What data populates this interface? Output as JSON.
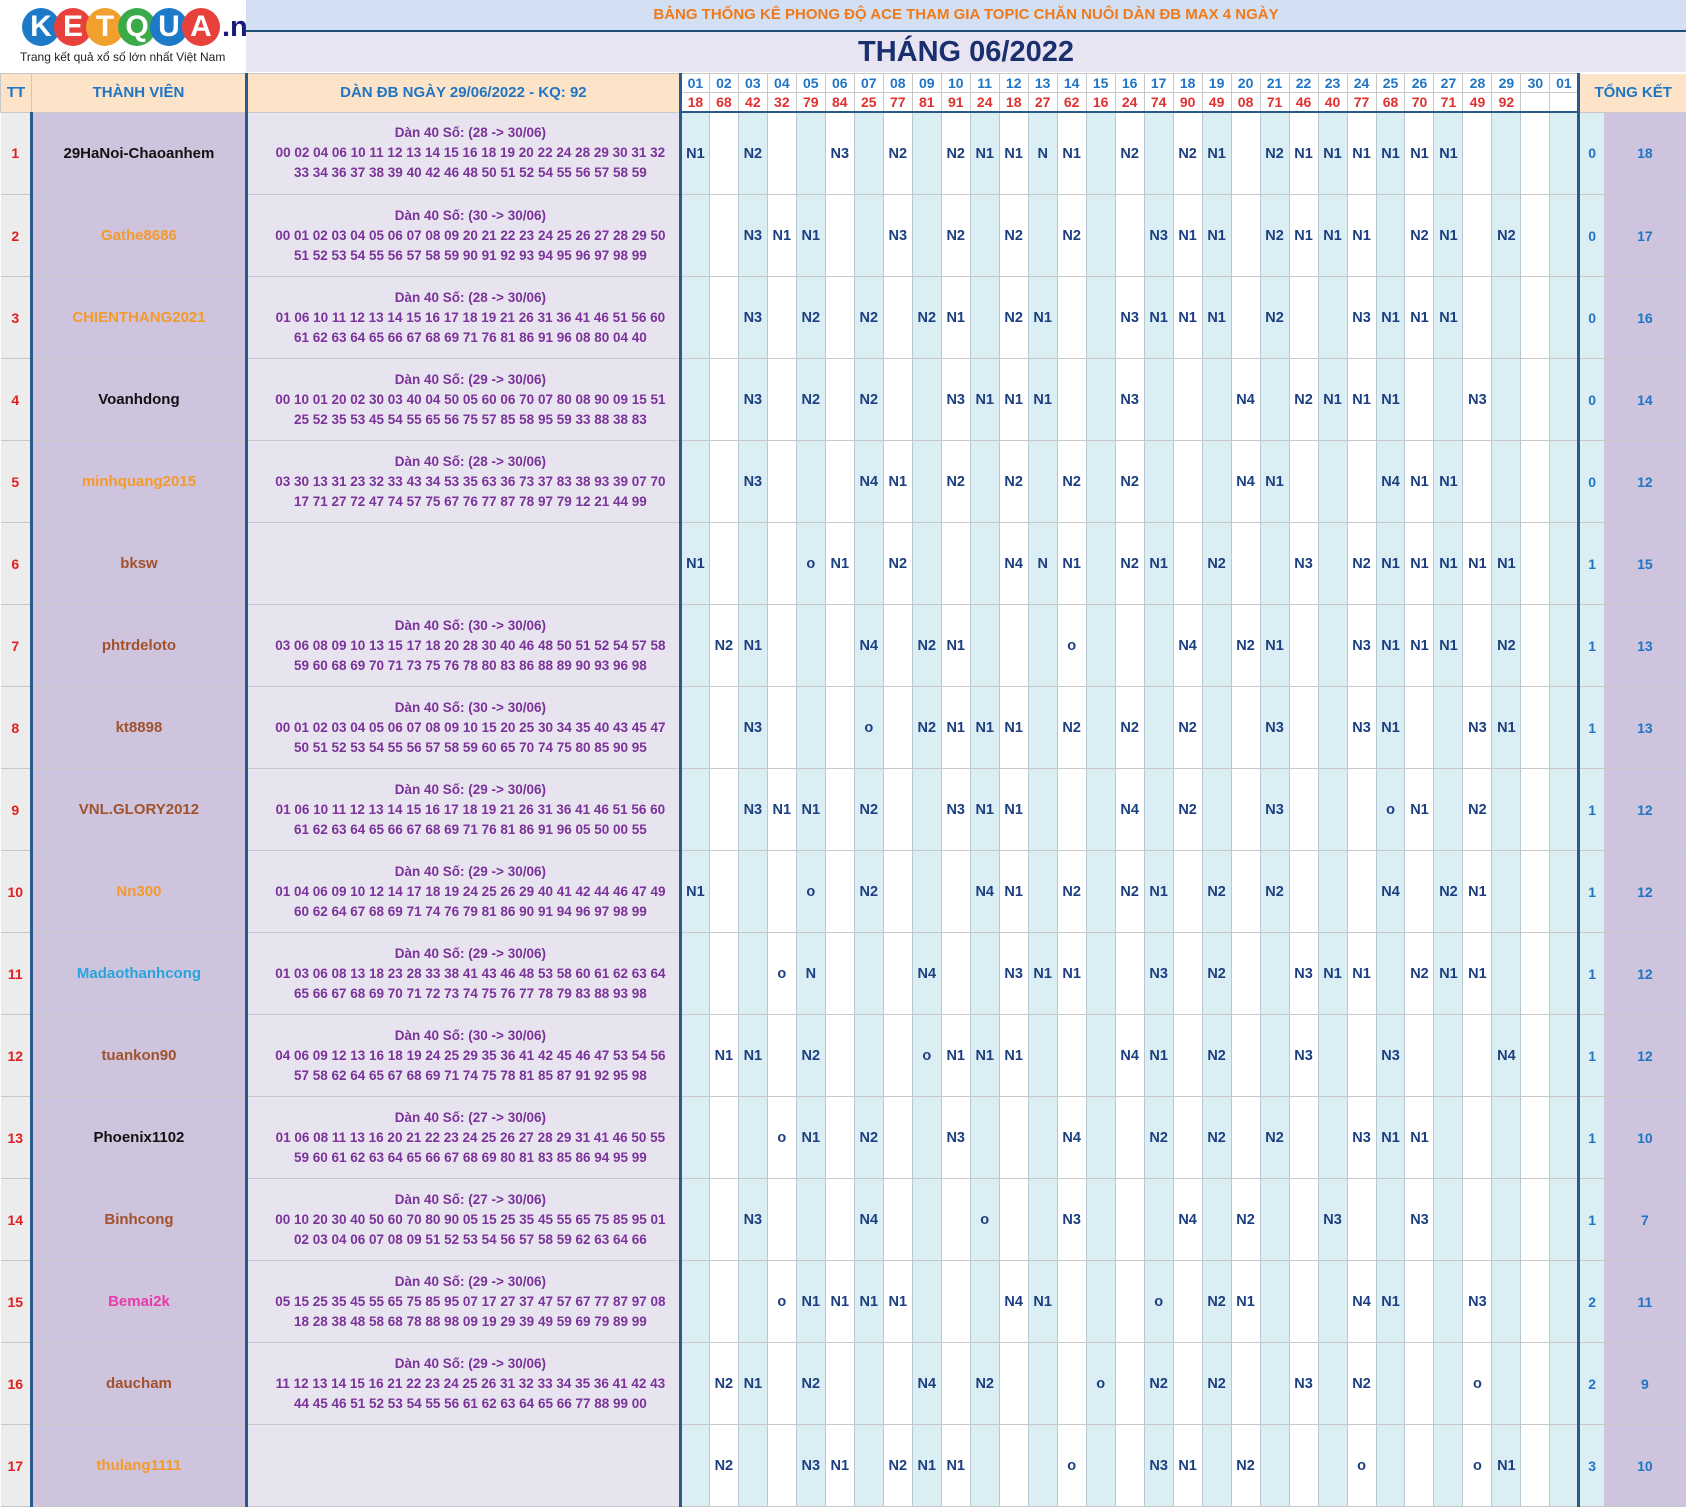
{
  "logo": {
    "letters": [
      "K",
      "E",
      "T",
      "Q",
      "U",
      "A"
    ],
    "colors": [
      "#1d7ac8",
      "#e8413c",
      "#f1a02e",
      "#3bab49",
      "#1d7ac8",
      "#e8413c"
    ],
    "domain": ".net",
    "tagline": "Trang kết quả xổ số lớn nhất Việt Nam"
  },
  "banner": "BẢNG THỐNG KÊ PHONG ĐỘ ACE THAM GIA TOPIC CHĂN NUÔI DÀN ĐB MAX 4 NGÀY",
  "month_title": "THÁNG 06/2022",
  "headers": {
    "tt": "TT",
    "member": "THÀNH VIÊN",
    "dan": "DÀN ĐB NGÀY 29/06/2022 - KQ: 92",
    "total": "TỔNG KẾT"
  },
  "days": [
    "01",
    "02",
    "03",
    "04",
    "05",
    "06",
    "07",
    "08",
    "09",
    "10",
    "11",
    "12",
    "13",
    "14",
    "15",
    "16",
    "17",
    "18",
    "19",
    "20",
    "21",
    "22",
    "23",
    "24",
    "25",
    "26",
    "27",
    "28",
    "29",
    "30",
    "01"
  ],
  "results": [
    "18",
    "68",
    "42",
    "32",
    "79",
    "84",
    "25",
    "77",
    "81",
    "91",
    "24",
    "18",
    "27",
    "62",
    "16",
    "24",
    "74",
    "90",
    "49",
    "08",
    "71",
    "46",
    "40",
    "77",
    "68",
    "70",
    "71",
    "49",
    "92",
    "",
    ""
  ],
  "rows": [
    {
      "tt": "1",
      "name": "29HaNoi-Chaoanhem",
      "color": "#111111",
      "dan1": "Dàn 40 Số: (28 -> 30/06)",
      "dan2": "00 02 04 06 10 11 12 13 14 15 16 18 19 20 22 24 28 29 30 31 32",
      "dan3": "33 34 36 37 38 39 40 42 46 48 50 51 52 54 55 56 57 58 59",
      "cells": [
        "N1",
        "",
        "N2",
        "",
        "",
        "N3",
        "",
        "N2",
        "",
        "N2",
        "N1",
        "N1",
        "N",
        "N1",
        "",
        "N2",
        "",
        "N2",
        "N1",
        "",
        "N2",
        "N1",
        "N1",
        "N1",
        "N1",
        "N1",
        "N1",
        "",
        "",
        "",
        ""
      ],
      "t1": "0",
      "t2": "18"
    },
    {
      "tt": "2",
      "name": "Gathe8686",
      "color": "#f39a2b",
      "dan1": "Dàn 40 Số: (30 -> 30/06)",
      "dan2": "00 01 02 03 04 05 06 07 08 09 20 21 22 23 24 25 26 27 28 29 50",
      "dan3": "51 52 53 54 55 56 57 58 59 90 91 92 93 94 95 96 97 98 99",
      "cells": [
        "",
        "",
        "N3",
        "N1",
        "N1",
        "",
        "",
        "N3",
        "",
        "N2",
        "",
        "N2",
        "",
        "N2",
        "",
        "",
        "N3",
        "N1",
        "N1",
        "",
        "N2",
        "N1",
        "N1",
        "N1",
        "",
        "N2",
        "N1",
        "",
        "N2",
        "",
        ""
      ],
      "t1": "0",
      "t2": "17"
    },
    {
      "tt": "3",
      "name": "CHIENTHANG2021",
      "color": "#f39a2b",
      "dan1": "Dàn 40 Số: (28 -> 30/06)",
      "dan2": "01 06 10 11 12 13 14 15 16 17 18 19 21 26 31 36 41 46 51 56 60",
      "dan3": "61 62 63 64 65 66 67 68 69 71 76 81 86 91 96 08 80 04 40",
      "cells": [
        "",
        "",
        "N3",
        "",
        "N2",
        "",
        "N2",
        "",
        "N2",
        "N1",
        "",
        "N2",
        "N1",
        "",
        "",
        "N3",
        "N1",
        "N1",
        "N1",
        "",
        "N2",
        "",
        "",
        "N3",
        "N1",
        "N1",
        "N1",
        "",
        "",
        "",
        ""
      ],
      "t1": "0",
      "t2": "16"
    },
    {
      "tt": "4",
      "name": "Voanhdong",
      "color": "#111111",
      "dan1": "Dàn 40 Số: (29 -> 30/06)",
      "dan2": "00 10 01 20 02 30 03 40 04 50 05 60 06 70 07 80 08 90 09 15 51",
      "dan3": "25 52 35 53 45 54 55 65 56 75 57 85 58 95 59 33 88 38 83",
      "cells": [
        "",
        "",
        "N3",
        "",
        "N2",
        "",
        "N2",
        "",
        "",
        "N3",
        "N1",
        "N1",
        "N1",
        "",
        "",
        "N3",
        "",
        "",
        "",
        "N4",
        "",
        "N2",
        "N1",
        "N1",
        "N1",
        "",
        "",
        "N3",
        "",
        "",
        ""
      ],
      "t1": "0",
      "t2": "14"
    },
    {
      "tt": "5",
      "name": "minhquang2015",
      "color": "#f39a2b",
      "dan1": "Dàn 40 Số: (28 -> 30/06)",
      "dan2": "03 30 13 31 23 32 33 43 34 53 35 63 36 73 37 83 38 93 39 07 70",
      "dan3": "17 71 27 72 47 74 57 75 67 76 77 87 78 97 79 12 21 44 99",
      "cells": [
        "",
        "",
        "N3",
        "",
        "",
        "",
        "N4",
        "N1",
        "",
        "N2",
        "",
        "N2",
        "",
        "N2",
        "",
        "N2",
        "",
        "",
        "",
        "N4",
        "N1",
        "",
        "",
        "",
        "N4",
        "N1",
        "N1",
        "",
        "",
        "",
        ""
      ],
      "t1": "0",
      "t2": "12"
    },
    {
      "tt": "6",
      "name": "bksw",
      "color": "#a0522d",
      "dan1": "",
      "dan2": "",
      "dan3": "",
      "cells": [
        "N1",
        "",
        "",
        "",
        "o",
        "N1",
        "",
        "N2",
        "",
        "",
        "",
        "N4",
        "N",
        "N1",
        "",
        "N2",
        "N1",
        "",
        "N2",
        "",
        "",
        "N3",
        "",
        "N2",
        "N1",
        "N1",
        "N1",
        "N1",
        "N1",
        "",
        ""
      ],
      "t1": "1",
      "t2": "15"
    },
    {
      "tt": "7",
      "name": "phtrdeloto",
      "color": "#a0522d",
      "dan1": "Dàn 40 Số: (30 -> 30/06)",
      "dan2": "03 06 08 09 10 13 15 17 18 20 28 30 40 46 48 50 51 52 54 57 58",
      "dan3": "59 60 68 69 70 71 73 75 76 78 80 83 86 88 89 90 93 96 98",
      "cells": [
        "",
        "N2",
        "N1",
        "",
        "",
        "",
        "N4",
        "",
        "N2",
        "N1",
        "",
        "",
        "",
        "o",
        "",
        "",
        "",
        "N4",
        "",
        "N2",
        "N1",
        "",
        "",
        "N3",
        "N1",
        "N1",
        "N1",
        "",
        "N2",
        "",
        ""
      ],
      "t1": "1",
      "t2": "13"
    },
    {
      "tt": "8",
      "name": "kt8898",
      "color": "#a0522d",
      "dan1": "Dàn 40 Số: (30 -> 30/06)",
      "dan2": "00 01 02 03 04 05 06 07 08 09 10 15 20 25 30 34 35 40 43 45 47",
      "dan3": "50 51 52 53 54 55 56 57 58 59 60 65 70 74 75 80 85 90 95",
      "cells": [
        "",
        "",
        "N3",
        "",
        "",
        "",
        "o",
        "",
        "N2",
        "N1",
        "N1",
        "N1",
        "",
        "N2",
        "",
        "N2",
        "",
        "N2",
        "",
        "",
        "N3",
        "",
        "",
        "N3",
        "N1",
        "",
        "",
        "N3",
        "N1",
        "",
        ""
      ],
      "t1": "1",
      "t2": "13"
    },
    {
      "tt": "9",
      "name": "VNL.GLORY2012",
      "color": "#a0522d",
      "dan1": "Dàn 40 Số: (29 -> 30/06)",
      "dan2": "01 06 10 11 12 13 14 15 16 17 18 19 21 26 31 36 41 46 51 56 60",
      "dan3": "61 62 63 64 65 66 67 68 69 71 76 81 86 91 96 05 50 00 55",
      "cells": [
        "",
        "",
        "N3",
        "N1",
        "N1",
        "",
        "N2",
        "",
        "",
        "N3",
        "N1",
        "N1",
        "",
        "",
        "",
        "N4",
        "",
        "N2",
        "",
        "",
        "N3",
        "",
        "",
        "",
        "o",
        "N1",
        "",
        "N2",
        "",
        "",
        ""
      ],
      "t1": "1",
      "t2": "12"
    },
    {
      "tt": "10",
      "name": "Nn300",
      "color": "#f39a2b",
      "dan1": "Dàn 40 Số: (29 -> 30/06)",
      "dan2": "01 04 06 09 10 12 14 17 18 19 24 25 26 29 40 41 42 44 46 47 49",
      "dan3": "60 62 64 67 68 69 71 74 76 79 81 86 90 91 94 96 97 98 99",
      "cells": [
        "N1",
        "",
        "",
        "",
        "o",
        "",
        "N2",
        "",
        "",
        "",
        "N4",
        "N1",
        "",
        "N2",
        "",
        "N2",
        "N1",
        "",
        "N2",
        "",
        "N2",
        "",
        "",
        "",
        "N4",
        "",
        "N2",
        "N1",
        "",
        "",
        ""
      ],
      "t1": "1",
      "t2": "12"
    },
    {
      "tt": "11",
      "name": "Madaothanhcong",
      "color": "#29a3dc",
      "dan1": "Dàn 40 Số: (29 -> 30/06)",
      "dan2": "01 03 06 08 13 18 23 28 33 38 41 43 46 48 53 58 60 61 62 63 64",
      "dan3": "65 66 67 68 69 70 71 72 73 74 75 76 77 78 79 83 88 93 98",
      "cells": [
        "",
        "",
        "",
        "o",
        "N",
        "",
        "",
        "",
        "N4",
        "",
        "",
        "N3",
        "N1",
        "N1",
        "",
        "",
        "N3",
        "",
        "N2",
        "",
        "",
        "N3",
        "N1",
        "N1",
        "",
        "N2",
        "N1",
        "N1",
        "",
        "",
        ""
      ],
      "t1": "1",
      "t2": "12"
    },
    {
      "tt": "12",
      "name": "tuankon90",
      "color": "#a0522d",
      "dan1": "Dàn 40 Số: (30 -> 30/06)",
      "dan2": "04 06 09 12 13 16 18 19 24 25 29 35 36 41 42 45 46 47 53 54 56",
      "dan3": "57 58 62 64 65 67 68 69 71 74 75 78 81 85 87 91 92 95 98",
      "cells": [
        "",
        "N1",
        "N1",
        "",
        "N2",
        "",
        "",
        "",
        "o",
        "N1",
        "N1",
        "N1",
        "",
        "",
        "",
        "N4",
        "N1",
        "",
        "N2",
        "",
        "",
        "N3",
        "",
        "",
        "N3",
        "",
        "",
        "",
        "N4",
        "",
        ""
      ],
      "t1": "1",
      "t2": "12"
    },
    {
      "tt": "13",
      "name": "Phoenix1102",
      "color": "#111111",
      "dan1": "Dàn 40 Số: (27 -> 30/06)",
      "dan2": "01 06 08 11 13 16 20 21 22 23 24 25 26 27 28 29 31 41 46 50 55",
      "dan3": "59 60 61 62 63 64 65 66 67 68 69 80 81 83 85 86 94 95 99",
      "cells": [
        "",
        "",
        "",
        "o",
        "N1",
        "",
        "N2",
        "",
        "",
        "N3",
        "",
        "",
        "",
        "N4",
        "",
        "",
        "N2",
        "",
        "N2",
        "",
        "N2",
        "",
        "",
        "N3",
        "N1",
        "N1",
        "",
        "",
        "",
        "",
        ""
      ],
      "t1": "1",
      "t2": "10"
    },
    {
      "tt": "14",
      "name": "Binhcong",
      "color": "#a0522d",
      "dan1": "Dàn 40 Số: (27 -> 30/06)",
      "dan2": "00 10 20 30 40 50 60 70 80 90 05 15 25 35 45 55 65 75 85 95 01",
      "dan3": "02 03 04 06 07 08 09 51 52 53 54 56 57 58 59 62 63 64 66",
      "cells": [
        "",
        "",
        "N3",
        "",
        "",
        "",
        "N4",
        "",
        "",
        "",
        "o",
        "",
        "",
        "N3",
        "",
        "",
        "",
        "N4",
        "",
        "N2",
        "",
        "",
        "N3",
        "",
        "",
        "N3",
        "",
        "",
        "",
        "",
        ""
      ],
      "t1": "1",
      "t2": "7"
    },
    {
      "tt": "15",
      "name": "Bemai2k",
      "color": "#e83aaa",
      "dan1": "Dàn 40 Số: (29 -> 30/06)",
      "dan2": "05 15 25 35 45 55 65 75 85 95 07 17 27 37 47 57 67 77 87 97 08",
      "dan3": "18 28 38 48 58 68 78 88 98 09 19 29 39 49 59 69 79 89 99",
      "cells": [
        "",
        "",
        "",
        "o",
        "N1",
        "N1",
        "N1",
        "N1",
        "",
        "",
        "",
        "N4",
        "N1",
        "",
        "",
        "",
        "o",
        "",
        "N2",
        "N1",
        "",
        "",
        "",
        "N4",
        "N1",
        "",
        "",
        "N3",
        "",
        "",
        ""
      ],
      "t1": "2",
      "t2": "11"
    },
    {
      "tt": "16",
      "name": "daucham",
      "color": "#a0522d",
      "dan1": "Dàn 40 Số: (29 -> 30/06)",
      "dan2": "11 12 13 14 15 16 21 22 23 24 25 26 31 32 33 34 35 36 41 42 43",
      "dan3": "44 45 46 51 52 53 54 55 56 61 62 63 64 65 66 77 88 99 00",
      "cells": [
        "",
        "N2",
        "N1",
        "",
        "N2",
        "",
        "",
        "",
        "N4",
        "",
        "N2",
        "",
        "",
        "",
        "o",
        "",
        "N2",
        "",
        "N2",
        "",
        "",
        "N3",
        "",
        "N2",
        "",
        "",
        "",
        "o",
        "",
        "",
        ""
      ],
      "t1": "2",
      "t2": "9"
    },
    {
      "tt": "17",
      "name": "thulang1111",
      "color": "#f39a2b",
      "dan1": "",
      "dan2": "",
      "dan3": "",
      "cells": [
        "",
        "N2",
        "",
        "",
        "N3",
        "N1",
        "",
        "N2",
        "N1",
        "N1",
        "",
        "",
        "",
        "o",
        "",
        "",
        "N3",
        "N1",
        "",
        "N2",
        "",
        "",
        "",
        "o",
        "",
        "",
        "",
        "o",
        "N1",
        "",
        ""
      ],
      "t1": "3",
      "t2": "10"
    }
  ]
}
